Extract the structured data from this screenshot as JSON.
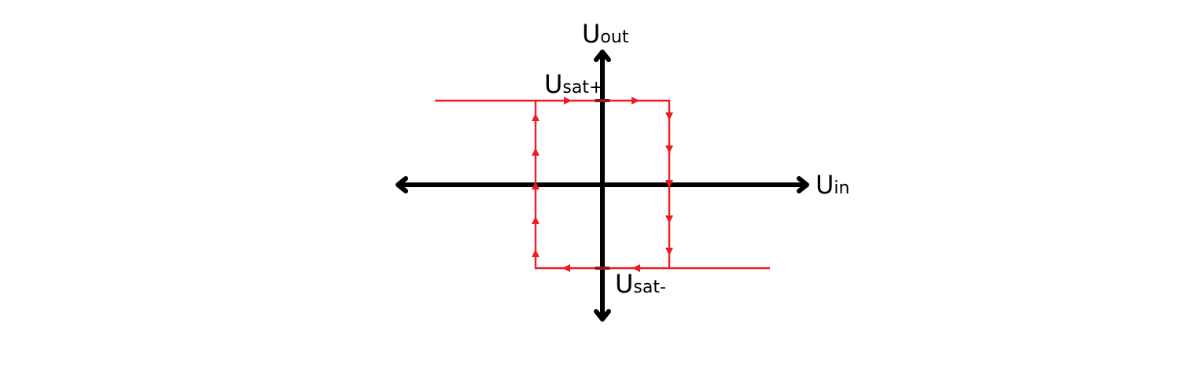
{
  "diagram": {
    "colors": {
      "axes": "#000000",
      "loop": "#ed1c24"
    },
    "labels": {
      "y_axis": {
        "main": "U",
        "sub": "out"
      },
      "x_axis": {
        "main": "U",
        "sub": "in"
      },
      "sat_pos": {
        "main": "U",
        "sub": "sat+"
      },
      "sat_neg": {
        "main": "U",
        "sub": "sat-"
      }
    }
  }
}
